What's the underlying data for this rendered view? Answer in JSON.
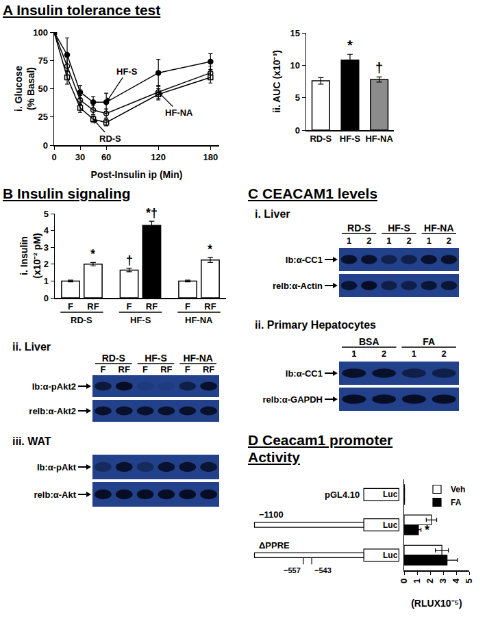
{
  "panels": [
    {
      "letter": "A",
      "title": "Insulin tolerance test"
    },
    {
      "letter": "B",
      "title": "Insulin signaling"
    },
    {
      "letter": "C",
      "title": "CEACAM1 levels"
    },
    {
      "letter": "D",
      "title": "Ceacam1 promoter\nActivity"
    }
  ],
  "chart_data": [
    {
      "type": "line",
      "y_label": "i. Glucose\n(% Basal)",
      "x_label": "Post-Insulin ip (Min)",
      "x": [
        0,
        15,
        30,
        45,
        60,
        120,
        180
      ],
      "series": [
        {
          "name": "RD-S",
          "color": "#000000",
          "marker": "square-open",
          "values": [
            100,
            60,
            33,
            23,
            20,
            45,
            60
          ],
          "errors": [
            0,
            6,
            4,
            3,
            3,
            5,
            5
          ]
        },
        {
          "name": "HF-NA",
          "color": "#000000",
          "marker": "circle-open",
          "values": [
            100,
            70,
            40,
            31,
            28,
            47,
            64
          ],
          "errors": [
            0,
            8,
            4,
            4,
            4,
            6,
            6
          ]
        },
        {
          "name": "HF-S",
          "color": "#000000",
          "marker": "circle",
          "values": [
            100,
            80,
            47,
            38,
            38,
            64,
            74
          ],
          "errors": [
            0,
            15,
            6,
            5,
            8,
            12,
            7
          ]
        }
      ],
      "xlim": [
        0,
        190
      ],
      "xticks": [
        0,
        30,
        60,
        120,
        180
      ],
      "ylim": [
        0,
        100
      ],
      "yticks": [
        0,
        25,
        50,
        75,
        100
      ],
      "grid": false,
      "annotations": [
        {
          "text": "HF-S",
          "x": 60,
          "y": 38
        },
        {
          "text": "RD-S",
          "x": 45,
          "y": 23
        },
        {
          "text": "HF-NA",
          "x": 120,
          "y": 47
        }
      ]
    },
    {
      "type": "bar",
      "y_label": "ii. AUC (x10⁻³)",
      "categories": [
        "RD-S",
        "HF-S",
        "HF-NA"
      ],
      "values": [
        7.6,
        10.8,
        7.8
      ],
      "errors": [
        0.5,
        0.9,
        0.4
      ],
      "colors": [
        "#ffffff",
        "#000000",
        "#8c8c8c"
      ],
      "ylim": [
        0,
        15
      ],
      "yticks": [
        0,
        5,
        10,
        15
      ],
      "grid": false,
      "annotations": [
        {
          "index": 1,
          "text": "*"
        },
        {
          "index": 2,
          "text": "†"
        }
      ]
    },
    {
      "type": "bar",
      "y_label": "i. Insulin\n(x10⁻² pM)",
      "categories": [
        "F",
        "RF",
        "F",
        "RF",
        "F",
        "RF"
      ],
      "groups": [
        "RD-S",
        "RD-S",
        "HF-S",
        "HF-S",
        "HF-NA",
        "HF-NA"
      ],
      "values": [
        1.0,
        2.0,
        1.65,
        4.3,
        1.0,
        2.25
      ],
      "errors": [
        0.05,
        0.1,
        0.1,
        0.25,
        0.05,
        0.15
      ],
      "colors": [
        "#ffffff",
        "#ffffff",
        "#ffffff",
        "#000000",
        "#ffffff",
        "#ffffff"
      ],
      "ylim": [
        0,
        5
      ],
      "yticks": [
        0,
        1,
        2,
        3,
        4,
        5
      ],
      "grid": false,
      "annotations": [
        {
          "index": 1,
          "text": "*"
        },
        {
          "index": 2,
          "text": "†"
        },
        {
          "index": 3,
          "text": "*†"
        },
        {
          "index": 5,
          "text": "*"
        }
      ]
    },
    {
      "type": "bar",
      "orientation": "horizontal",
      "categories": [
        "pGL4.10",
        "−1100",
        "ΔPPRE"
      ],
      "promoter": [
        false,
        true,
        true
      ],
      "construct_label": "Luc",
      "deletion_of": "ΔPPRE",
      "deletion_marks": [
        "−557",
        "−543"
      ],
      "series": [
        {
          "name": "Veh",
          "color": "#ffffff",
          "values": [
            0.03,
            2.1,
            2.9
          ],
          "errors": [
            0,
            0.4,
            0.5
          ]
        },
        {
          "name": "FA",
          "color": "#000000",
          "values": [
            0.03,
            1.1,
            3.3
          ],
          "errors": [
            0,
            0.2,
            0.8
          ]
        }
      ],
      "x_label": "(RLUX10⁻⁵)",
      "xlim": [
        0,
        5
      ],
      "xticks": [
        0,
        1,
        2,
        3,
        4,
        5
      ],
      "grid": false,
      "legend": "upper right",
      "tick_labels": "x",
      "annotations": [
        {
          "index": 1,
          "series": "FA",
          "text": "*"
        }
      ]
    }
  ],
  "blots": [
    {
      "title": "ii. Liver",
      "groups": [
        {
          "name": "RD-S",
          "lanes": [
            "F",
            "RF"
          ]
        },
        {
          "name": "HF-S",
          "lanes": [
            "F",
            "RF"
          ]
        },
        {
          "name": "HF-NA",
          "lanes": [
            "F",
            "RF"
          ]
        }
      ],
      "rows": [
        {
          "label": "Ib:α-pAkt2",
          "intensity": [
            0.7,
            0.9,
            0.12,
            0.08,
            0.6,
            0.85
          ]
        },
        {
          "label": "relb:α-Akt2",
          "intensity": [
            0.85,
            0.85,
            0.85,
            0.85,
            0.85,
            0.85
          ]
        }
      ]
    },
    {
      "title": "iii. WAT",
      "rows": [
        {
          "label": "Ib:α-pAkt",
          "intensity": [
            0.4,
            0.85,
            0.4,
            0.8,
            0.85,
            0.75
          ]
        },
        {
          "label": "relb:α-Akt",
          "intensity": [
            0.9,
            0.9,
            0.9,
            0.9,
            0.9,
            0.9
          ]
        }
      ]
    },
    {
      "title": "i. Liver",
      "groups": [
        {
          "name": "RD-S",
          "lanes": [
            "1",
            "2"
          ]
        },
        {
          "name": "HF-S",
          "lanes": [
            "1",
            "2"
          ]
        },
        {
          "name": "HF-NA",
          "lanes": [
            "1",
            "2"
          ]
        }
      ],
      "rows": [
        {
          "label": "Ib:α-CC1",
          "intensity": [
            0.85,
            0.85,
            0.55,
            0.6,
            0.85,
            0.85
          ]
        },
        {
          "label": "relb:α-Actin",
          "intensity": [
            0.8,
            0.9,
            0.6,
            0.6,
            0.75,
            0.75
          ]
        }
      ]
    },
    {
      "title": "ii. Primary Hepatocytes",
      "groups": [
        {
          "name": "BSA",
          "lanes": [
            "1",
            "2"
          ]
        },
        {
          "name": "FA",
          "lanes": [
            "1",
            "2"
          ]
        }
      ],
      "rows": [
        {
          "label": "Ib:α-CC1",
          "intensity": [
            0.85,
            0.85,
            0.6,
            0.6
          ]
        },
        {
          "label": "relb:α-GAPDH",
          "intensity": [
            0.9,
            0.9,
            0.9,
            0.9
          ]
        }
      ]
    }
  ]
}
